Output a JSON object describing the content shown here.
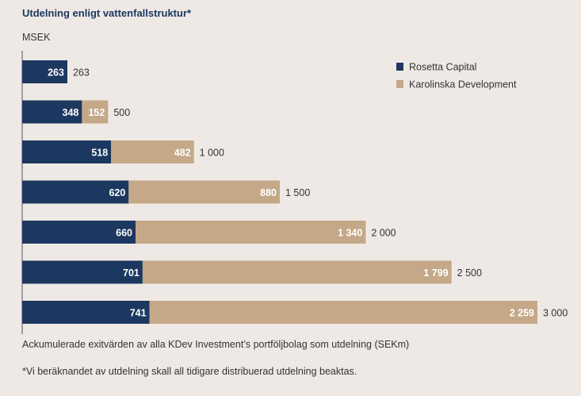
{
  "title": "Utdelning enligt vattenfallstruktur*",
  "unit_label": "MSEK",
  "footnotes": {
    "caption": "Ackumulerade exitvärden av alla KDev Investment’s portföljbolag som utdelning (SEKm)",
    "note": "*Vi beräknandet av utdelning skall all tidigare distribuerad utdelning beaktas."
  },
  "colors": {
    "background": "#efe9e5",
    "rosetta": "#1c3860",
    "karolinska": "#c4a888",
    "axis": "#555555"
  },
  "chart_data": {
    "type": "bar",
    "orientation": "horizontal",
    "stacked": true,
    "title": "Utdelning enligt vattenfallstruktur*",
    "unit": "MSEK",
    "categories": [
      "263",
      "500",
      "1 000",
      "1 500",
      "2 000",
      "2 500",
      "3 000"
    ],
    "series": [
      {
        "name": "Rosetta Capital",
        "color": "#1c3860",
        "values": [
          263,
          348,
          518,
          620,
          660,
          701,
          741
        ],
        "labels": [
          "263",
          "348",
          "518",
          "620",
          "660",
          "701",
          "741"
        ]
      },
      {
        "name": "Karolinska Development",
        "color": "#c4a888",
        "values": [
          0,
          152,
          482,
          880,
          1340,
          1799,
          2259
        ],
        "labels": [
          "",
          "152",
          "482",
          "880",
          "1 340",
          "1 799",
          "2 259"
        ]
      }
    ],
    "totals": [
      263,
      500,
      1000,
      1500,
      2000,
      2500,
      3000
    ],
    "total_labels": [
      "263",
      "500",
      "1 000",
      "1 500",
      "2 000",
      "2 500",
      "3 000"
    ],
    "xlim": [
      0,
      3000
    ],
    "grid": false,
    "legend": "top-right"
  }
}
